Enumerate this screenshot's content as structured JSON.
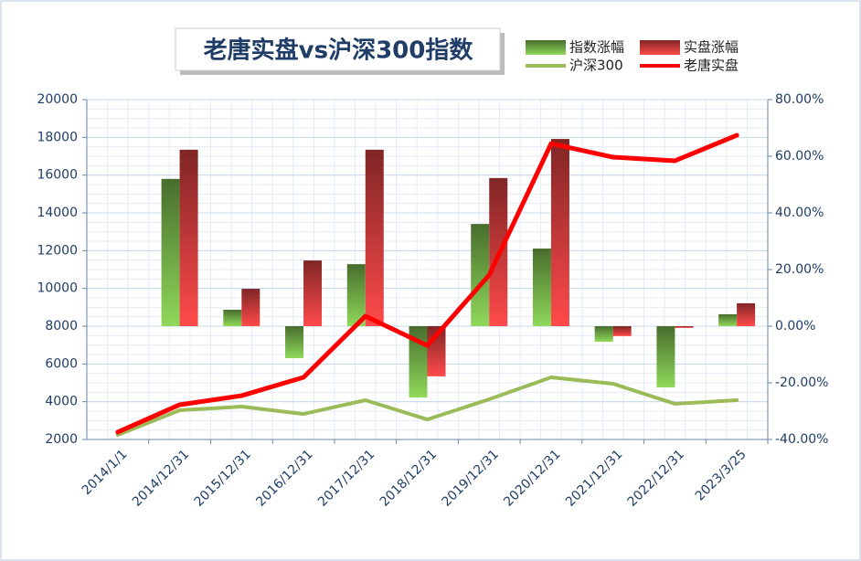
{
  "chart_data": {
    "type": "combo",
    "title": "老唐实盘vs沪深300指数",
    "categories": [
      "2014/1/1",
      "2014/12/31",
      "2015/12/31",
      "2016/12/31",
      "2017/12/31",
      "2018/12/31",
      "2019/12/31",
      "2020/12/31",
      "2021/12/31",
      "2022/12/31",
      "2023/3/25"
    ],
    "series": [
      {
        "name": "指数涨幅",
        "type": "bar",
        "axis": "y2",
        "color": "#8fd95a",
        "values": [
          null,
          52,
          5.8,
          -11.3,
          21.9,
          -25.2,
          36.1,
          27.4,
          -5.5,
          -21.6,
          4.2
        ]
      },
      {
        "name": "实盘涨幅",
        "type": "bar",
        "axis": "y2",
        "color": "#ff4a4a",
        "values": [
          null,
          62.3,
          13.2,
          23.2,
          62.3,
          -17.7,
          52.3,
          66.1,
          -3.5,
          -0.6,
          8.1
        ]
      },
      {
        "name": "沪深300",
        "type": "line",
        "axis": "y",
        "color": "#9bbb59",
        "values": [
          2240,
          3550,
          3740,
          3350,
          4080,
          3060,
          4130,
          5290,
          4950,
          3890,
          4080
        ]
      },
      {
        "name": "老唐实盘",
        "type": "line",
        "axis": "y",
        "color": "#ff0000",
        "values": [
          2390,
          3840,
          4320,
          5290,
          8530,
          6980,
          10710,
          17670,
          16950,
          16760,
          18110
        ]
      }
    ],
    "ylim": [
      2000,
      20000
    ],
    "yticks": [
      2000,
      4000,
      6000,
      8000,
      10000,
      12000,
      14000,
      16000,
      18000,
      20000
    ],
    "y2lim": [
      -40,
      80
    ],
    "y2ticks": [
      {
        "value": -40,
        "label": "-40.00%"
      },
      {
        "value": -20,
        "label": "-20.00%"
      },
      {
        "value": 0,
        "label": "0.00%"
      },
      {
        "value": 20,
        "label": "20.00%"
      },
      {
        "value": 40,
        "label": "40.00%"
      },
      {
        "value": 60,
        "label": "60.00%"
      },
      {
        "value": 80,
        "label": "80.00%"
      }
    ],
    "grid": true
  }
}
